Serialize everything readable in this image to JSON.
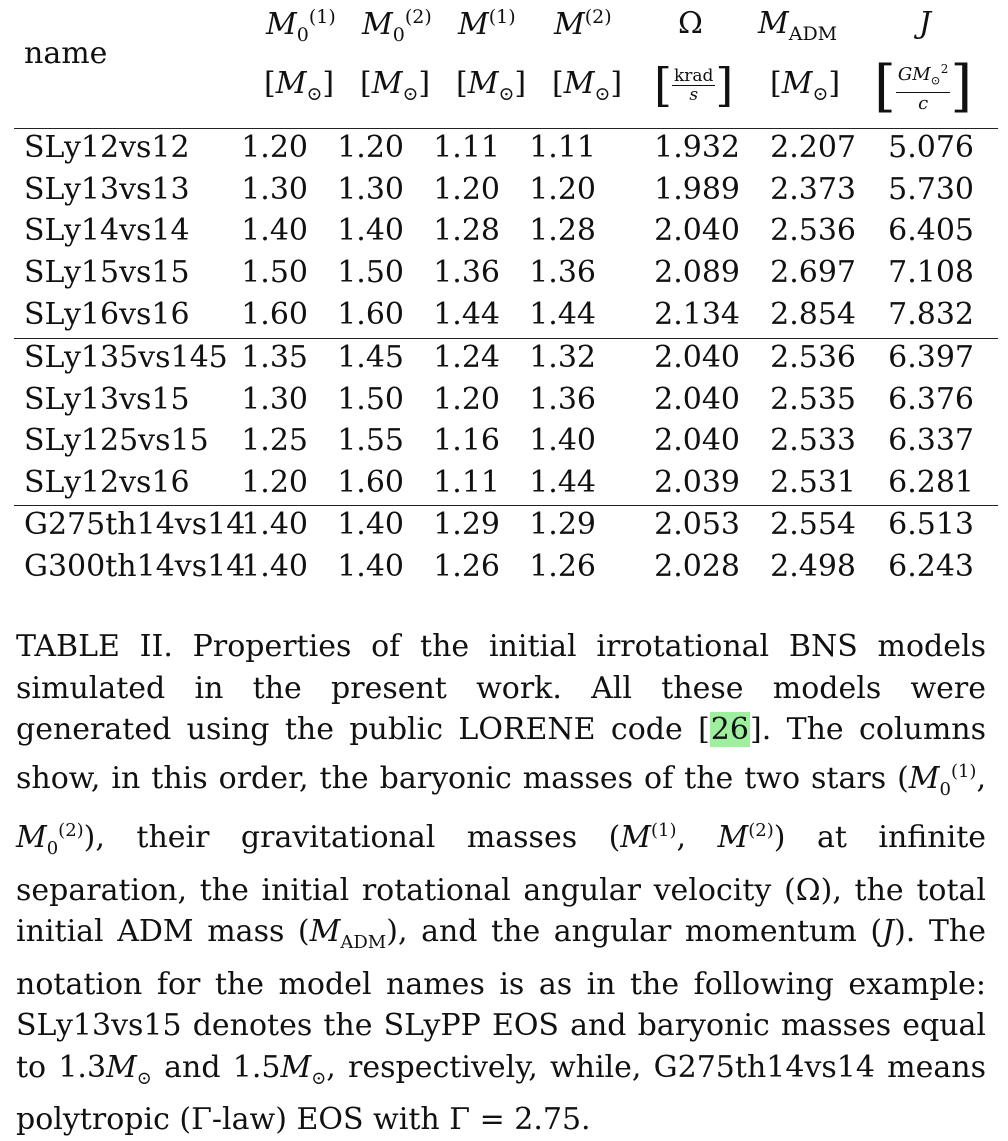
{
  "table": {
    "name_header": "name",
    "columns": [
      {
        "symbol_html": "M<sub>0</sub><sup>(1)</sup>",
        "unit_html": "[M<sub>⊙</sub>]"
      },
      {
        "symbol_html": "M<sub>0</sub><sup>(2)</sup>",
        "unit_html": "[M<sub>⊙</sub>]"
      },
      {
        "symbol_html": "M<sup>(1)</sup>",
        "unit_html": "[M<sub>⊙</sub>]"
      },
      {
        "symbol_html": "M<sup>(2)</sup>",
        "unit_html": "[M<sub>⊙</sub>]"
      },
      {
        "symbol_html": "Ω",
        "unit_html": "krad/s"
      },
      {
        "symbol_html": "M<sub>ADM</sub>",
        "unit_html": "[M<sub>⊙</sub>]"
      },
      {
        "symbol_html": "J",
        "unit_html": "GM⊙²/c"
      }
    ],
    "groups": [
      [
        [
          "SLy12vs12",
          "1.20",
          "1.20",
          "1.11",
          "1.11",
          "1.932",
          "2.207",
          "5.076"
        ],
        [
          "SLy13vs13",
          "1.30",
          "1.30",
          "1.20",
          "1.20",
          "1.989",
          "2.373",
          "5.730"
        ],
        [
          "SLy14vs14",
          "1.40",
          "1.40",
          "1.28",
          "1.28",
          "2.040",
          "2.536",
          "6.405"
        ],
        [
          "SLy15vs15",
          "1.50",
          "1.50",
          "1.36",
          "1.36",
          "2.089",
          "2.697",
          "7.108"
        ],
        [
          "SLy16vs16",
          "1.60",
          "1.60",
          "1.44",
          "1.44",
          "2.134",
          "2.854",
          "7.832"
        ]
      ],
      [
        [
          "SLy135vs145",
          "1.35",
          "1.45",
          "1.24",
          "1.32",
          "2.040",
          "2.536",
          "6.397"
        ],
        [
          "SLy13vs15",
          "1.30",
          "1.50",
          "1.20",
          "1.36",
          "2.040",
          "2.535",
          "6.376"
        ],
        [
          "SLy125vs15",
          "1.25",
          "1.55",
          "1.16",
          "1.40",
          "2.040",
          "2.533",
          "6.337"
        ],
        [
          "SLy12vs16",
          "1.20",
          "1.60",
          "1.11",
          "1.44",
          "2.039",
          "2.531",
          "6.281"
        ]
      ],
      [
        [
          "G275th14vs14",
          "1.40",
          "1.40",
          "1.29",
          "1.29",
          "2.053",
          "2.554",
          "6.513"
        ],
        [
          "G300th14vs14",
          "1.40",
          "1.40",
          "1.26",
          "1.26",
          "2.028",
          "2.498",
          "6.243"
        ]
      ]
    ]
  },
  "caption": {
    "label": "TABLE II.",
    "text_before_cite": "Properties of the initial irrotational BNS models simulated in the present work. All these models were generated using the public LORENE code",
    "cite": "26",
    "text_after_cite": ". The columns show, in this order, the baryonic masses of the two stars",
    "text_2": "their gravitational masses",
    "text_3": "at infinite separation, the initial rotational angular velocity (Ω), the total initial ADM mass",
    "text_4": "and the angular momentum",
    "text_5": "The notation for the model names is as in the following example: SLy13vs15 denotes the SLyPP EOS and baryonic masses equal to 1.3",
    "text_6": "and 1.5",
    "text_7": ", respectively, while, G275th14vs14 means polytropic (Γ-law) EOS with Γ = 2.75."
  }
}
